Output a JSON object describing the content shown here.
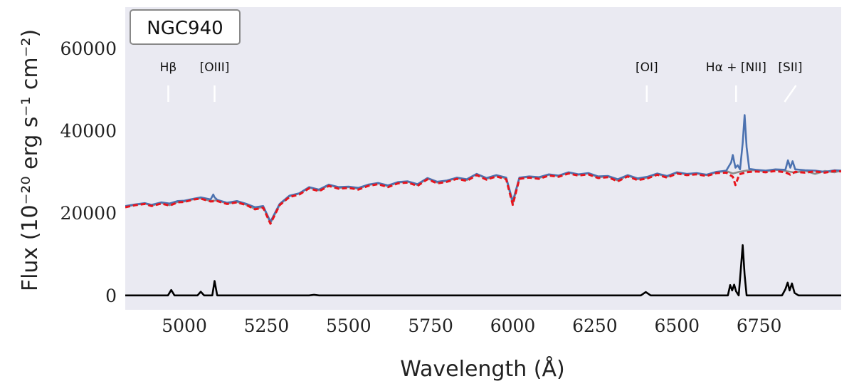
{
  "chart_data": {
    "type": "line",
    "title": "",
    "galaxy_label": "NGC940",
    "xlabel": "Wavelength (Å)",
    "ylabel": "Flux (10⁻²⁰ erg s⁻¹ cm⁻²)",
    "xlim": [
      4820,
      7000
    ],
    "ylim": [
      -3500,
      70000
    ],
    "xticks": [
      5000,
      5250,
      5500,
      5750,
      6000,
      6250,
      6500,
      6750
    ],
    "yticks": [
      0,
      20000,
      40000,
      60000
    ],
    "grid": false,
    "background": "#EAEAF2",
    "series": [
      {
        "style": "observed",
        "color": "#8C8C8C",
        "x": [
          4820,
          4850,
          4880,
          4900,
          4930,
          4955,
          4980,
          5000,
          5030,
          5050,
          5080,
          5100,
          5130,
          5160,
          5190,
          5215,
          5240,
          5262,
          5290,
          5320,
          5350,
          5380,
          5410,
          5440,
          5470,
          5500,
          5530,
          5560,
          5590,
          5620,
          5650,
          5680,
          5710,
          5740,
          5770,
          5800,
          5830,
          5860,
          5890,
          5920,
          5950,
          5980,
          6000,
          6020,
          6050,
          6080,
          6110,
          6140,
          6170,
          6200,
          6230,
          6260,
          6290,
          6320,
          6350,
          6380,
          6410,
          6440,
          6470,
          6500,
          6530,
          6560,
          6590,
          6620,
          6650,
          6670,
          6690,
          6710,
          6740,
          6770,
          6800,
          6830,
          6860,
          6890,
          6920,
          6950,
          6980,
          7000
        ],
        "y": [
          21500,
          22000,
          22300,
          21800,
          22500,
          21900,
          22700,
          22800,
          23400,
          23600,
          22900,
          23100,
          22300,
          22700,
          22000,
          21000,
          21500,
          17600,
          22000,
          24100,
          24700,
          26200,
          25500,
          26800,
          26100,
          26300,
          25900,
          26800,
          27200,
          26500,
          27400,
          27600,
          26800,
          28400,
          27400,
          27800,
          28500,
          28000,
          29500,
          28300,
          29100,
          28400,
          22300,
          28500,
          28800,
          28500,
          29300,
          29000,
          29800,
          29300,
          29600,
          28700,
          28900,
          27900,
          29100,
          28200,
          28600,
          29500,
          28800,
          29800,
          29400,
          29600,
          29200,
          29900,
          30200,
          29600,
          30000,
          30300,
          30400,
          30100,
          30500,
          30200,
          29800,
          30300,
          29500,
          30200,
          29900,
          30300
        ]
      },
      {
        "style": "model",
        "color": "#4C72B0",
        "x": [
          4820,
          4850,
          4880,
          4900,
          4930,
          4955,
          4980,
          5000,
          5030,
          5050,
          5080,
          5088,
          5092,
          5100,
          5130,
          5160,
          5190,
          5215,
          5240,
          5262,
          5290,
          5320,
          5350,
          5380,
          5410,
          5440,
          5470,
          5500,
          5530,
          5560,
          5590,
          5620,
          5650,
          5680,
          5710,
          5740,
          5770,
          5800,
          5830,
          5860,
          5890,
          5920,
          5950,
          5980,
          6000,
          6020,
          6050,
          6080,
          6110,
          6140,
          6170,
          6200,
          6230,
          6260,
          6290,
          6320,
          6350,
          6380,
          6410,
          6440,
          6470,
          6500,
          6530,
          6560,
          6590,
          6620,
          6650,
          6665,
          6670,
          6678,
          6685,
          6692,
          6700,
          6706,
          6712,
          6720,
          6740,
          6770,
          6800,
          6830,
          6838,
          6845,
          6852,
          6860,
          6890,
          6920,
          6950,
          6980,
          7000
        ],
        "y": [
          21700,
          22100,
          22400,
          22000,
          22600,
          22300,
          22900,
          23000,
          23500,
          23800,
          23300,
          24500,
          23800,
          23200,
          22500,
          22900,
          22200,
          21400,
          21700,
          17900,
          22200,
          24200,
          24800,
          26300,
          25700,
          26900,
          26300,
          26400,
          26100,
          26900,
          27300,
          26700,
          27500,
          27700,
          27000,
          28500,
          27600,
          27900,
          28600,
          28200,
          29500,
          28500,
          29200,
          28600,
          22800,
          28600,
          28900,
          28700,
          29400,
          29100,
          29900,
          29400,
          29700,
          28900,
          29000,
          28200,
          29200,
          28400,
          28800,
          29600,
          29000,
          29900,
          29500,
          29700,
          29300,
          30000,
          30300,
          32300,
          34100,
          31000,
          31600,
          30600,
          37000,
          43800,
          36000,
          30700,
          30500,
          30300,
          30600,
          30500,
          32800,
          31000,
          32600,
          30600,
          30400,
          30300,
          30000,
          30400,
          30300
        ]
      },
      {
        "style": "stellar-fit",
        "color": "#E8141C",
        "x": [
          4820,
          4850,
          4880,
          4900,
          4930,
          4955,
          4980,
          5000,
          5030,
          5050,
          5080,
          5100,
          5130,
          5160,
          5190,
          5215,
          5240,
          5262,
          5290,
          5320,
          5350,
          5380,
          5410,
          5440,
          5470,
          5500,
          5530,
          5560,
          5590,
          5620,
          5650,
          5680,
          5710,
          5740,
          5770,
          5800,
          5830,
          5860,
          5890,
          5920,
          5950,
          5980,
          6000,
          6020,
          6050,
          6080,
          6110,
          6140,
          6170,
          6200,
          6230,
          6260,
          6290,
          6320,
          6350,
          6380,
          6410,
          6440,
          6470,
          6500,
          6530,
          6560,
          6590,
          6620,
          6650,
          6670,
          6678,
          6690,
          6710,
          6740,
          6770,
          6800,
          6830,
          6845,
          6860,
          6890,
          6920,
          6950,
          6980,
          7000
        ],
        "y": [
          21400,
          21900,
          22200,
          21700,
          22300,
          21800,
          22600,
          22700,
          23300,
          23500,
          22800,
          22900,
          22200,
          22600,
          21900,
          20900,
          21300,
          17400,
          21900,
          23900,
          24500,
          26000,
          25300,
          26600,
          25900,
          26100,
          25700,
          26600,
          27000,
          26300,
          27200,
          27400,
          26600,
          28200,
          27200,
          27600,
          28300,
          27800,
          29200,
          28100,
          28900,
          28200,
          22000,
          28300,
          28600,
          28300,
          29100,
          28800,
          29600,
          29100,
          29400,
          28500,
          28700,
          27700,
          28900,
          28000,
          28400,
          29300,
          28600,
          29600,
          29200,
          29400,
          29000,
          29700,
          29800,
          28800,
          26800,
          29400,
          29900,
          30100,
          29900,
          30200,
          29900,
          29300,
          30000,
          29800,
          30100,
          29800,
          30200,
          30100
        ]
      },
      {
        "style": "emission",
        "color": "#000000",
        "x": [
          4820,
          4930,
          4950,
          4960,
          4970,
          4990,
          5030,
          5040,
          5050,
          5060,
          5075,
          5085,
          5092,
          5100,
          5115,
          5200,
          5380,
          5395,
          5410,
          5600,
          6300,
          6390,
          6405,
          6420,
          6500,
          6640,
          6655,
          6662,
          6668,
          6674,
          6680,
          6688,
          6694,
          6700,
          6706,
          6712,
          6730,
          6800,
          6820,
          6830,
          6837,
          6843,
          6850,
          6858,
          6870,
          6940,
          7000
        ],
        "y": [
          0,
          0,
          0,
          1300,
          0,
          0,
          0,
          0,
          900,
          0,
          0,
          0,
          3500,
          0,
          0,
          0,
          0,
          150,
          0,
          0,
          0,
          0,
          800,
          0,
          0,
          0,
          0,
          2500,
          1200,
          2600,
          1000,
          0,
          6000,
          12200,
          5000,
          0,
          0,
          0,
          0,
          1500,
          3100,
          1200,
          2900,
          600,
          0,
          0,
          0
        ]
      }
    ],
    "annotations": [
      {
        "label": "Hβ",
        "x": 4951
      },
      {
        "label": "[OIII]",
        "x": 5092
      },
      {
        "label": "[OI]",
        "x": 6408
      },
      {
        "label": "Hα + [NII]",
        "x": 6680
      },
      {
        "label": "[SII]",
        "x": 6845
      }
    ]
  }
}
